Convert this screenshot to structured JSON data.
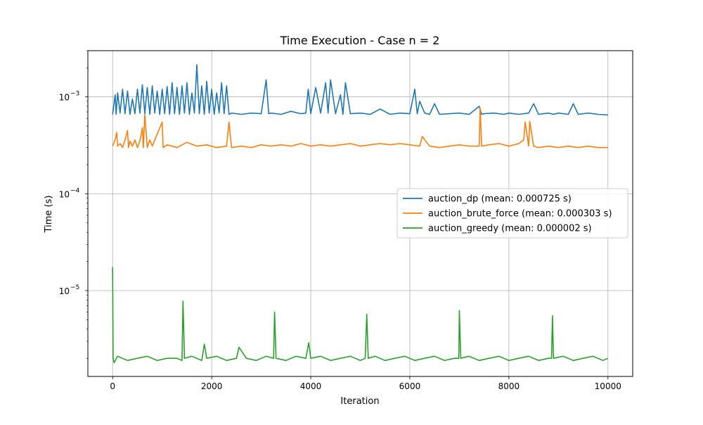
{
  "chart_data": {
    "type": "line",
    "title": "Time Execution - Case n = 2",
    "xlabel": "Iteration",
    "ylabel": "Time (s)",
    "xlim": [
      -500,
      10500
    ],
    "ylim": [
      1.3e-06,
      0.003
    ],
    "yscale": "log",
    "grid": true,
    "legend_position": "center-right",
    "x_ticks": [
      {
        "value": 0,
        "label": "0"
      },
      {
        "value": 2000,
        "label": "2000"
      },
      {
        "value": 4000,
        "label": "4000"
      },
      {
        "value": 6000,
        "label": "6000"
      },
      {
        "value": 8000,
        "label": "8000"
      },
      {
        "value": 10000,
        "label": "10000"
      }
    ],
    "y_ticks": [
      {
        "value": 1e-05,
        "base": "10",
        "exp": "−5"
      },
      {
        "value": 0.0001,
        "base": "10",
        "exp": "−4"
      },
      {
        "value": 0.001,
        "base": "10",
        "exp": "−3"
      }
    ],
    "series": [
      {
        "name": "auction_dp (mean: 0.000725 s)",
        "color": "#1f77b4",
        "x": [
          0,
          50,
          70,
          100,
          150,
          200,
          250,
          300,
          350,
          400,
          450,
          500,
          550,
          600,
          650,
          700,
          750,
          800,
          850,
          900,
          950,
          1000,
          1050,
          1100,
          1150,
          1200,
          1250,
          1300,
          1350,
          1400,
          1450,
          1500,
          1550,
          1600,
          1650,
          1700,
          1750,
          1800,
          1850,
          1900,
          1950,
          2000,
          2050,
          2100,
          2150,
          2200,
          2250,
          2300,
          2350,
          2400,
          2600,
          2800,
          3000,
          3100,
          3150,
          3200,
          3400,
          3600,
          3800,
          3900,
          3950,
          4000,
          4100,
          4200,
          4300,
          4350,
          4400,
          4500,
          4600,
          4650,
          4700,
          4800,
          5000,
          5200,
          5400,
          5600,
          5800,
          6000,
          6100,
          6150,
          6200,
          6300,
          6400,
          6500,
          6600,
          6800,
          7000,
          7200,
          7400,
          7450,
          7500,
          7700,
          7900,
          8000,
          8200,
          8400,
          8500,
          8600,
          8700,
          8800,
          8900,
          9000,
          9200,
          9300,
          9400,
          9600,
          9800,
          10000
        ],
        "values": [
          0.00066,
          0.00105,
          0.00066,
          0.0011,
          0.00068,
          0.0012,
          0.00067,
          0.00115,
          0.00066,
          0.00095,
          0.00067,
          0.0012,
          0.00068,
          0.00133,
          0.00067,
          0.00125,
          0.00066,
          0.0013,
          0.00068,
          0.00115,
          0.00066,
          0.0012,
          0.00067,
          0.00128,
          0.00066,
          0.0014,
          0.00067,
          0.00125,
          0.00066,
          0.0013,
          0.00068,
          0.0014,
          0.00066,
          0.0011,
          0.00068,
          0.00215,
          0.00067,
          0.0013,
          0.00066,
          0.00145,
          0.00068,
          0.0012,
          0.00066,
          0.0011,
          0.00068,
          0.0014,
          0.00067,
          0.0013,
          0.00066,
          0.00068,
          0.00066,
          0.00068,
          0.00067,
          0.0015,
          0.00067,
          0.00068,
          0.00066,
          0.00071,
          0.00067,
          0.00068,
          0.0012,
          0.00067,
          0.00125,
          0.00068,
          0.0014,
          0.00068,
          0.0015,
          0.00067,
          0.00105,
          0.00066,
          0.0014,
          0.00067,
          0.00068,
          0.00066,
          0.00075,
          0.00066,
          0.00068,
          0.00067,
          0.0012,
          0.00067,
          0.0009,
          0.00068,
          0.00066,
          0.00085,
          0.00066,
          0.00067,
          0.00068,
          0.00066,
          0.0008,
          0.00066,
          0.00067,
          0.00068,
          0.00066,
          0.00068,
          0.00066,
          0.00068,
          0.00085,
          0.00066,
          0.00067,
          0.00068,
          0.00066,
          0.00068,
          0.00066,
          0.00085,
          0.00066,
          0.00068,
          0.00066,
          0.00065
        ]
      },
      {
        "name": "auction_brute_force (mean: 0.000303 s)",
        "color": "#ff7f0e",
        "x": [
          0,
          50,
          80,
          100,
          150,
          200,
          250,
          300,
          320,
          350,
          400,
          450,
          500,
          550,
          600,
          620,
          650,
          700,
          750,
          800,
          1000,
          1020,
          1100,
          1300,
          1500,
          1700,
          1900,
          2100,
          2300,
          2350,
          2400,
          2600,
          2800,
          3000,
          3200,
          3400,
          3600,
          3800,
          4000,
          4200,
          4400,
          4600,
          4800,
          5000,
          5200,
          5400,
          5600,
          5800,
          6000,
          6200,
          6250,
          6400,
          6600,
          6800,
          7000,
          7200,
          7400,
          7420,
          7450,
          7600,
          7800,
          8000,
          8200,
          8300,
          8330,
          8400,
          8420,
          8500,
          8600,
          8800,
          9000,
          9200,
          9400,
          9600,
          9800,
          10000
        ],
        "values": [
          0.00031,
          0.00036,
          0.00043,
          0.00031,
          0.00033,
          0.0003,
          0.00036,
          0.00045,
          0.0003,
          0.00035,
          0.00031,
          0.00036,
          0.0003,
          0.00035,
          0.00048,
          0.0003,
          0.00066,
          0.0003,
          0.00036,
          0.00031,
          0.00055,
          0.0003,
          0.00032,
          0.0003,
          0.00034,
          0.00031,
          0.00032,
          0.0003,
          0.00031,
          0.00055,
          0.0003,
          0.00031,
          0.0003,
          0.00032,
          0.00031,
          0.00032,
          0.00031,
          0.00033,
          0.00031,
          0.00032,
          0.00031,
          0.00032,
          0.00033,
          0.00031,
          0.00032,
          0.00033,
          0.00032,
          0.00033,
          0.00032,
          0.00031,
          0.00039,
          0.00031,
          0.0003,
          0.00031,
          0.00032,
          0.00031,
          0.00031,
          0.00077,
          0.00031,
          0.00032,
          0.00033,
          0.00031,
          0.00033,
          0.00036,
          0.00055,
          0.00031,
          0.00056,
          0.00031,
          0.0003,
          0.00031,
          0.0003,
          0.00031,
          0.0003,
          0.00031,
          0.0003,
          0.0003
        ]
      },
      {
        "name": "auction_greedy (mean: 0.000002 s)",
        "color": "#2ca02c",
        "x": [
          0,
          10,
          30,
          100,
          300,
          500,
          700,
          900,
          1100,
          1300,
          1400,
          1420,
          1450,
          1600,
          1800,
          1850,
          1900,
          2100,
          2300,
          2500,
          2550,
          2700,
          2900,
          3100,
          3250,
          3270,
          3300,
          3500,
          3700,
          3900,
          3960,
          4000,
          4200,
          4400,
          4600,
          4800,
          5000,
          5100,
          5130,
          5160,
          5300,
          5500,
          5700,
          5900,
          6100,
          6300,
          6500,
          6700,
          6900,
          6990,
          7000,
          7030,
          7200,
          7400,
          7600,
          7800,
          8000,
          8200,
          8400,
          8600,
          8800,
          8860,
          8880,
          8900,
          9100,
          9300,
          9500,
          9700,
          9900,
          10000
        ],
        "values": [
          1.75e-05,
          2e-06,
          1.8e-06,
          2.1e-06,
          1.9e-06,
          2e-06,
          2.1e-06,
          1.9e-06,
          2e-06,
          2e-06,
          1.9e-06,
          7.8e-06,
          2e-06,
          2.1e-06,
          1.9e-06,
          2.8e-06,
          2e-06,
          2.1e-06,
          1.9e-06,
          2e-06,
          2.6e-06,
          2e-06,
          1.9e-06,
          2.1e-06,
          2e-06,
          6e-06,
          2e-06,
          1.9e-06,
          2.1e-06,
          2e-06,
          2.9e-06,
          2e-06,
          2.1e-06,
          1.9e-06,
          2e-06,
          2.1e-06,
          1.9e-06,
          2e-06,
          5.7e-06,
          2e-06,
          2.1e-06,
          1.9e-06,
          2e-06,
          2.1e-06,
          1.9e-06,
          2e-06,
          2.1e-06,
          1.9e-06,
          2e-06,
          2e-06,
          6.2e-06,
          2e-06,
          2.1e-06,
          1.9e-06,
          2e-06,
          2.1e-06,
          1.9e-06,
          2e-06,
          2.1e-06,
          1.9e-06,
          2e-06,
          2e-06,
          5.5e-06,
          2e-06,
          2.1e-06,
          1.9e-06,
          2e-06,
          2.1e-06,
          1.9e-06,
          2e-06
        ]
      }
    ]
  }
}
